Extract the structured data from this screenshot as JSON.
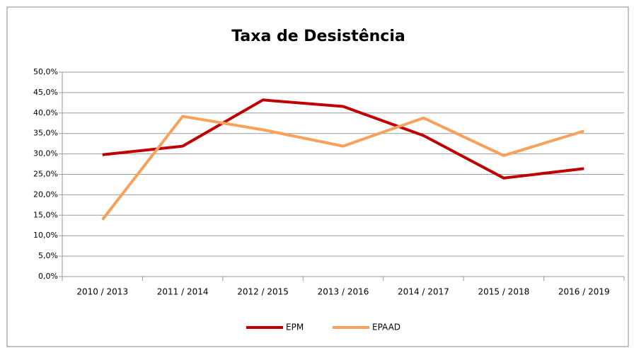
{
  "chart_data": {
    "type": "line",
    "title": "Taxa de Desistência",
    "categories": [
      "2010 / 2013",
      "2011 / 2014",
      "2012 / 2015",
      "2013 / 2016",
      "2014 / 2017",
      "2015 / 2018",
      "2016 / 2019"
    ],
    "series": [
      {
        "name": "EPM",
        "color": "#c00000",
        "values": [
          29.8,
          31.9,
          43.2,
          41.6,
          34.5,
          24.1,
          26.4
        ]
      },
      {
        "name": "EPAAD",
        "color": "#f9a05a",
        "values": [
          13.9,
          39.2,
          35.9,
          31.9,
          38.8,
          29.6,
          35.6
        ]
      }
    ],
    "ylim": [
      0,
      50
    ],
    "yticks": [
      {
        "value": 0,
        "label": "0,0%"
      },
      {
        "value": 5,
        "label": "5,0%"
      },
      {
        "value": 10,
        "label": "10,0%"
      },
      {
        "value": 15,
        "label": "15,0%"
      },
      {
        "value": 20,
        "label": "20,0%"
      },
      {
        "value": 25,
        "label": "25,0%"
      },
      {
        "value": 30,
        "label": "30,0%"
      },
      {
        "value": 35,
        "label": "35,0%"
      },
      {
        "value": 40,
        "label": "40,0%"
      },
      {
        "value": 45,
        "label": "45,0%"
      },
      {
        "value": 50,
        "label": "50,0%"
      }
    ],
    "grid": true,
    "legend": "bottom"
  }
}
